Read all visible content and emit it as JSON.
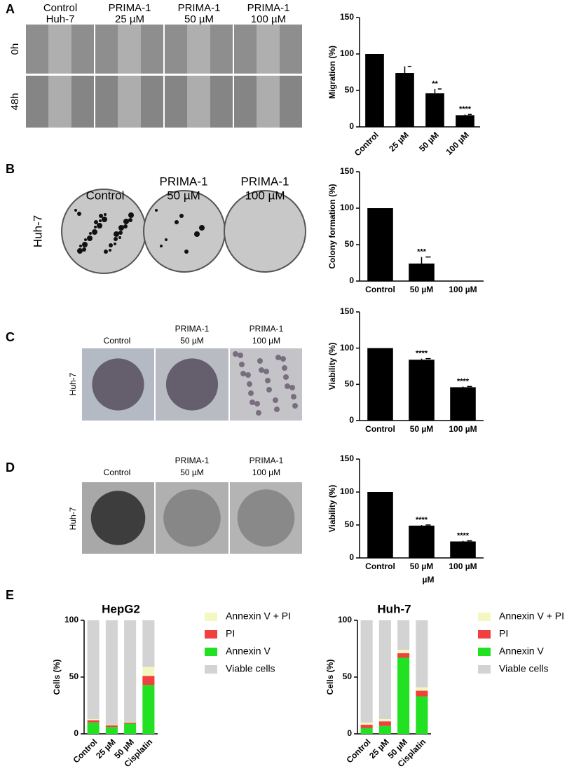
{
  "panels": [
    {
      "letter": "A",
      "column_labels": [
        [
          "Control",
          "Huh-7"
        ],
        [
          "PRIMA-1",
          "25 µM"
        ],
        [
          "PRIMA-1",
          "50 µM"
        ],
        [
          "PRIMA-1",
          "100 µM"
        ]
      ],
      "row_labels": [
        "0h",
        "48h"
      ]
    },
    {
      "letter": "B",
      "column_labels": [
        [
          "Control"
        ],
        [
          "PRIMA-1",
          "50 µM"
        ],
        [
          "PRIMA-1",
          "100 µM"
        ]
      ],
      "side_label": "Huh-7"
    },
    {
      "letter": "C",
      "column_labels": [
        [
          "Control"
        ],
        [
          "PRIMA-1",
          "50 µM"
        ],
        [
          "PRIMA-1",
          "100 µM"
        ]
      ],
      "side_label": "Huh-7"
    },
    {
      "letter": "D",
      "column_labels": [
        [
          "Control"
        ],
        [
          "PRIMA-1",
          "50 µM"
        ],
        [
          "PRIMA-1",
          "100 µM"
        ]
      ],
      "side_label": "Huh-7"
    },
    {
      "letter": "E"
    }
  ],
  "chart_data": [
    {
      "type": "bar",
      "y_label": "Migration (%)",
      "categories": [
        "Control",
        "25 µM",
        "50 µM",
        "100 µM"
      ],
      "values": [
        100,
        74,
        46,
        16
      ],
      "errors": [
        null,
        9,
        6,
        1
      ],
      "annotations": [
        null,
        null,
        "**",
        "****"
      ],
      "color": "#000000",
      "ylim": [
        0,
        150
      ],
      "yticks": [
        0,
        50,
        100,
        150
      ]
    },
    {
      "type": "bar",
      "y_label": "Colony formation (%)",
      "categories": [
        "Control",
        "50 µM",
        "100 µM"
      ],
      "values": [
        100,
        24,
        0
      ],
      "errors": [
        null,
        9,
        null
      ],
      "annotations": [
        null,
        "***",
        null
      ],
      "color": "#000000",
      "ylim": [
        0,
        150
      ],
      "yticks": [
        0,
        50,
        100,
        150
      ]
    },
    {
      "type": "bar",
      "y_label": "Viability (%)",
      "categories": [
        "Control",
        "50 µM",
        "100 µM"
      ],
      "values": [
        100,
        84,
        46
      ],
      "errors": [
        null,
        1.5,
        1
      ],
      "annotations": [
        null,
        "****",
        "****"
      ],
      "color": "#000000",
      "ylim": [
        0,
        150
      ],
      "yticks": [
        0,
        50,
        100,
        150
      ]
    },
    {
      "type": "bar",
      "y_label": "Viability (%)",
      "x_label": "µM",
      "categories": [
        "Control",
        "50 µM",
        "100 µM"
      ],
      "values": [
        100,
        49,
        25
      ],
      "errors": [
        null,
        1,
        1
      ],
      "annotations": [
        null,
        "****",
        "****"
      ],
      "color": "#000000",
      "ylim": [
        0,
        150
      ],
      "yticks": [
        0,
        50,
        100,
        150
      ]
    },
    {
      "type": "stacked_bar",
      "title": "HepG2",
      "y_label": "Cells (%)",
      "categories": [
        "Control",
        "25 µM",
        "50 µM",
        "Cisplatin"
      ],
      "ylim": [
        0,
        100
      ],
      "yticks": [
        0,
        50,
        100
      ],
      "series": [
        {
          "name": "Annexin V + PI",
          "color": "#f4f7c0",
          "values": [
            1,
            0.5,
            0.5,
            8
          ]
        },
        {
          "name": "PI",
          "color": "#f04040",
          "values": [
            2,
            1.5,
            1,
            8
          ]
        },
        {
          "name": "Annexin V",
          "color": "#22e022",
          "values": [
            10,
            6,
            9,
            43
          ]
        },
        {
          "name": "Viable cells",
          "color": "#d3d3d3",
          "values": [
            87,
            92,
            89.5,
            41
          ]
        }
      ]
    },
    {
      "type": "stacked_bar",
      "title": "Huh-7",
      "y_label": "Cells (%)",
      "categories": [
        "Control",
        "25 µM",
        "50 µM",
        "Cisplatin"
      ],
      "ylim": [
        0,
        100
      ],
      "yticks": [
        0,
        50,
        100
      ],
      "series": [
        {
          "name": "Annexin V + PI",
          "color": "#f4f7c0",
          "values": [
            2,
            2,
            3,
            3
          ]
        },
        {
          "name": "PI",
          "color": "#f04040",
          "values": [
            3,
            4,
            4,
            5
          ]
        },
        {
          "name": "Annexin V",
          "color": "#22e022",
          "values": [
            5,
            7,
            67,
            33
          ]
        },
        {
          "name": "Viable cells",
          "color": "#d3d3d3",
          "values": [
            90,
            87,
            26,
            59
          ]
        }
      ]
    }
  ]
}
